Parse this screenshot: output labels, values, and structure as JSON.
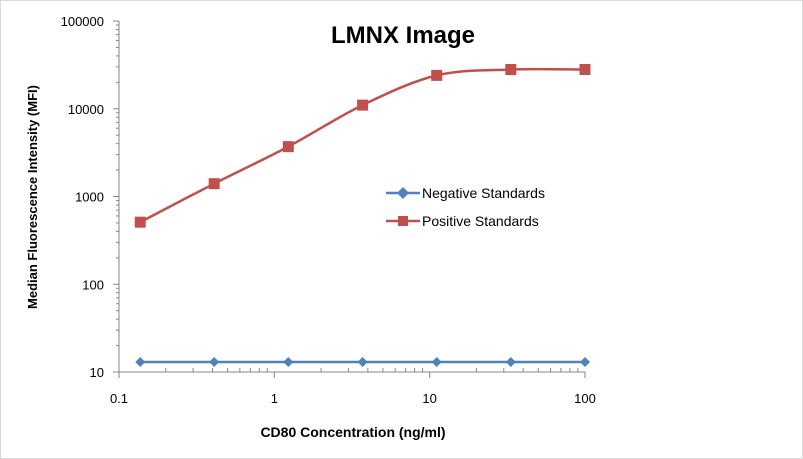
{
  "chart_data": {
    "type": "line",
    "title": "LMNX Image",
    "xlabel": "CD80 Concentration (ng/ml)",
    "ylabel": "Median Fluorescence Intensity (MFI)",
    "x_scale": "log",
    "y_scale": "log",
    "xlim": [
      0.1,
      100
    ],
    "ylim": [
      10,
      100000
    ],
    "x_ticks": [
      "0.1",
      "1",
      "10",
      "100"
    ],
    "y_ticks": [
      "10",
      "100",
      "1000",
      "10000",
      "100000"
    ],
    "grid": false,
    "legend_position": "right",
    "series": [
      {
        "name": "Negative Standards",
        "color": "#4f81bd",
        "marker": "diamond",
        "x": [
          0.137,
          0.41,
          1.23,
          3.7,
          11.1,
          33.3,
          100
        ],
        "y": [
          13,
          13,
          13,
          13,
          13,
          13,
          13
        ]
      },
      {
        "name": "Positive Standards",
        "color": "#c0504d",
        "marker": "square",
        "x": [
          0.137,
          0.41,
          1.23,
          3.7,
          11.1,
          33.3,
          100
        ],
        "y": [
          510,
          1400,
          3700,
          11000,
          24000,
          28000,
          28000
        ]
      }
    ]
  }
}
